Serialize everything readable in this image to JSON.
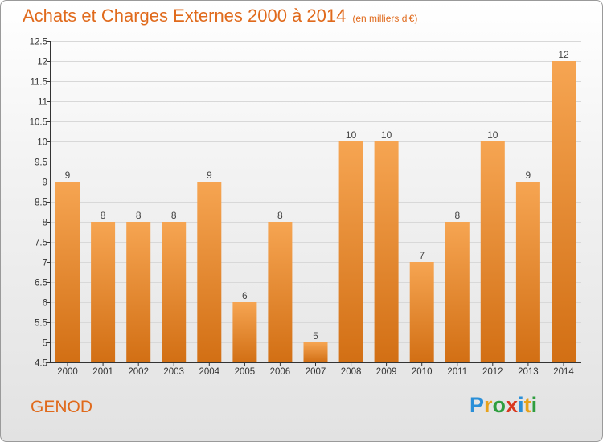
{
  "title": "Achats et Charges Externes 2000 à 2014",
  "unit_label": "(en milliers d'€)",
  "commune": "GENOD",
  "logo": {
    "letters": [
      "P",
      "r",
      "o",
      "x",
      "i",
      "t",
      "i"
    ],
    "colors": [
      "#2a8fd8",
      "#e8a21a",
      "#2f9e3f",
      "#d9381e",
      "#2a8fd8",
      "#e8a21a",
      "#2f9e3f"
    ]
  },
  "colors": {
    "accent": "#e06a1c",
    "bar_top": "#f6a552",
    "bar_bottom": "#d26f14",
    "axis": "#333333",
    "grid": "#d8d8d8"
  },
  "chart_data": {
    "type": "bar",
    "title": "Achats et Charges Externes 2000 à 2014",
    "categories": [
      "2000",
      "2001",
      "2002",
      "2003",
      "2004",
      "2005",
      "2006",
      "2007",
      "2008",
      "2009",
      "2010",
      "2011",
      "2012",
      "2013",
      "2014"
    ],
    "values": [
      9,
      8,
      8,
      8,
      9,
      6,
      8,
      5,
      10,
      10,
      7,
      8,
      10,
      9,
      12
    ],
    "data_labels": [
      "9",
      "8",
      "8",
      "8",
      "9",
      "6",
      "8",
      "5",
      "10",
      "10",
      "7",
      "8",
      "10",
      "9",
      "12"
    ],
    "ylim": [
      4.5,
      12.5
    ],
    "yticks": [
      4.5,
      5,
      5.5,
      6,
      6.5,
      7,
      7.5,
      8,
      8.5,
      9,
      9.5,
      10,
      10.5,
      11,
      11.5,
      12,
      12.5
    ],
    "ytick_labels": [
      "4.5",
      "5",
      "5.5",
      "6",
      "6.5",
      "7",
      "7.5",
      "8",
      "8.5",
      "9",
      "9.5",
      "10",
      "10.5",
      "11",
      "11.5",
      "12",
      "12.5"
    ],
    "grid": true,
    "xlabel": "",
    "ylabel": ""
  }
}
